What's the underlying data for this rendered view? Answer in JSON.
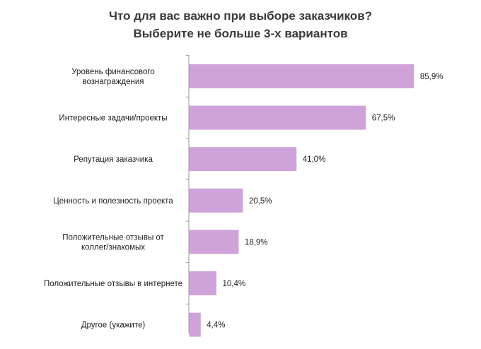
{
  "chart_data": {
    "type": "bar",
    "orientation": "horizontal",
    "title_lines": [
      "Что для вас важно при выборе заказчиков?",
      "Выберите не больше 3-х вариантов"
    ],
    "categories": [
      "Уровень финансового вознаграждения",
      "Интересные задачи/проекты",
      "Репутация заказчика",
      "Ценность и полезность проекта",
      "Положительные отзывы от коллег/знакомых",
      "Положительные отзывы в интернете",
      "Другое (укажите)"
    ],
    "category_lines": [
      [
        "Уровень финансового",
        "вознаграждения"
      ],
      [
        "Интересные задачи/проекты"
      ],
      [
        "Репутация заказчика"
      ],
      [
        "Ценность и полезность проекта"
      ],
      [
        "Положительные отзывы от",
        "коллег/знакомых"
      ],
      [
        "Положительные отзывы в интернете"
      ],
      [
        "Другое (укажите)"
      ]
    ],
    "values": [
      85.9,
      67.5,
      41.0,
      20.5,
      18.9,
      10.4,
      4.4
    ],
    "value_labels": [
      "85,9%",
      "67,5%",
      "41,0%",
      "20,5%",
      "18,9%",
      "10,4%",
      "4,4%"
    ],
    "xlim": [
      0,
      100
    ],
    "unit": "%",
    "grid": false,
    "legend": "none",
    "colors": {
      "bar": "#cfa3d9",
      "axis": "#9a9a9a",
      "text": "#222222",
      "title": "#3a3a3a"
    }
  }
}
